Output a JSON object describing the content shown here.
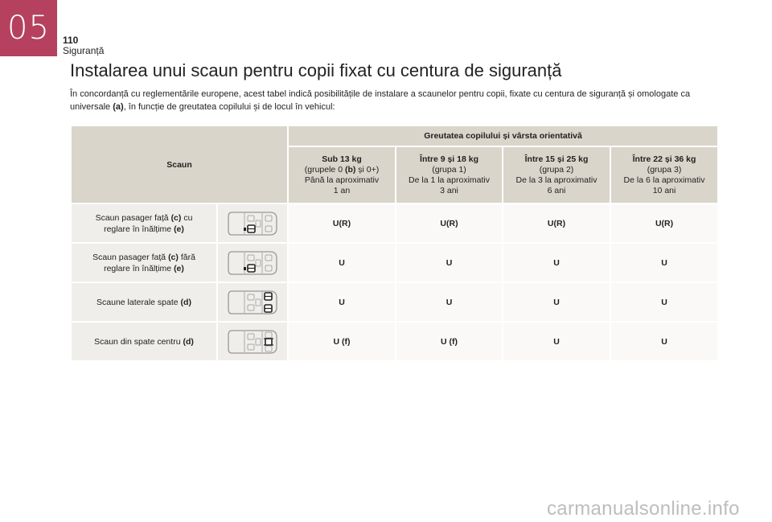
{
  "chapter": {
    "number": "05"
  },
  "page": {
    "number": "110",
    "section": "Siguranță"
  },
  "title": "Instalarea unui scaun pentru copii fixat cu centura de siguranță",
  "intro": {
    "part1": "În concordanță cu reglementările europene, acest tabel indică posibilitățile de instalare a scaunelor pentru copii, fixate cu centura de siguranță și omologate ca universale ",
    "bold": "(a)",
    "part2": ", în funcție de greutatea copilului și de locul în vehicul:"
  },
  "table": {
    "seat_header": "Scaun",
    "weight_header": "Greutatea copilului și vârsta orientativă",
    "columns": [
      {
        "title": "Sub 13 kg",
        "group_pre": "(grupele 0 ",
        "group_bold": "(b)",
        "group_post": " și 0+)",
        "age_line1": "Până la aproximativ",
        "age_line2": "1 an"
      },
      {
        "title": "Între 9 și 18 kg",
        "group_pre": "(grupa 1)",
        "group_bold": "",
        "group_post": "",
        "age_line1": "De la 1 la aproximativ",
        "age_line2": "3 ani"
      },
      {
        "title": "Între 15 și 25 kg",
        "group_pre": "(grupa 2)",
        "group_bold": "",
        "group_post": "",
        "age_line1": "De la 3 la aproximativ",
        "age_line2": "6 ani"
      },
      {
        "title": "Între 22 și 36 kg",
        "group_pre": "(grupa 3)",
        "group_bold": "",
        "group_post": "",
        "age_line1": "De la 6 la aproximativ",
        "age_line2": "10 ani"
      }
    ],
    "rows": [
      {
        "label_a": "Scaun pasager față ",
        "label_a_bold": "(c)",
        "label_b": " cu",
        "label_c": "reglare în înălțime ",
        "label_c_bold": "(e)",
        "icon": "car-front-passenger-seat-icon",
        "values": [
          "U(R)",
          "U(R)",
          "U(R)",
          "U(R)"
        ]
      },
      {
        "label_a": "Scaun pasager față ",
        "label_a_bold": "(c)",
        "label_b": " fără",
        "label_c": "reglare în înălțime ",
        "label_c_bold": "(e)",
        "icon": "car-front-passenger-seat-icon",
        "values": [
          "U",
          "U",
          "U",
          "U"
        ]
      },
      {
        "label_a": "Scaune laterale spate ",
        "label_a_bold": "(d)",
        "label_b": "",
        "label_c": "",
        "label_c_bold": "",
        "icon": "car-rear-side-seats-icon",
        "values": [
          "U",
          "U",
          "U",
          "U"
        ]
      },
      {
        "label_a": "Scaun din spate centru ",
        "label_a_bold": "(d)",
        "label_b": "",
        "label_c": "",
        "label_c_bold": "",
        "icon": "car-rear-center-seat-icon",
        "values": [
          "U (f)",
          "U (f)",
          "U",
          "U"
        ]
      }
    ]
  },
  "watermark": "carmanualsonline.info",
  "colors": {
    "chapter_tab": "#b5415f",
    "header_bg": "#d9d5cb",
    "label_bg": "#f0eeea",
    "cell_bg": "#faf9f7"
  }
}
